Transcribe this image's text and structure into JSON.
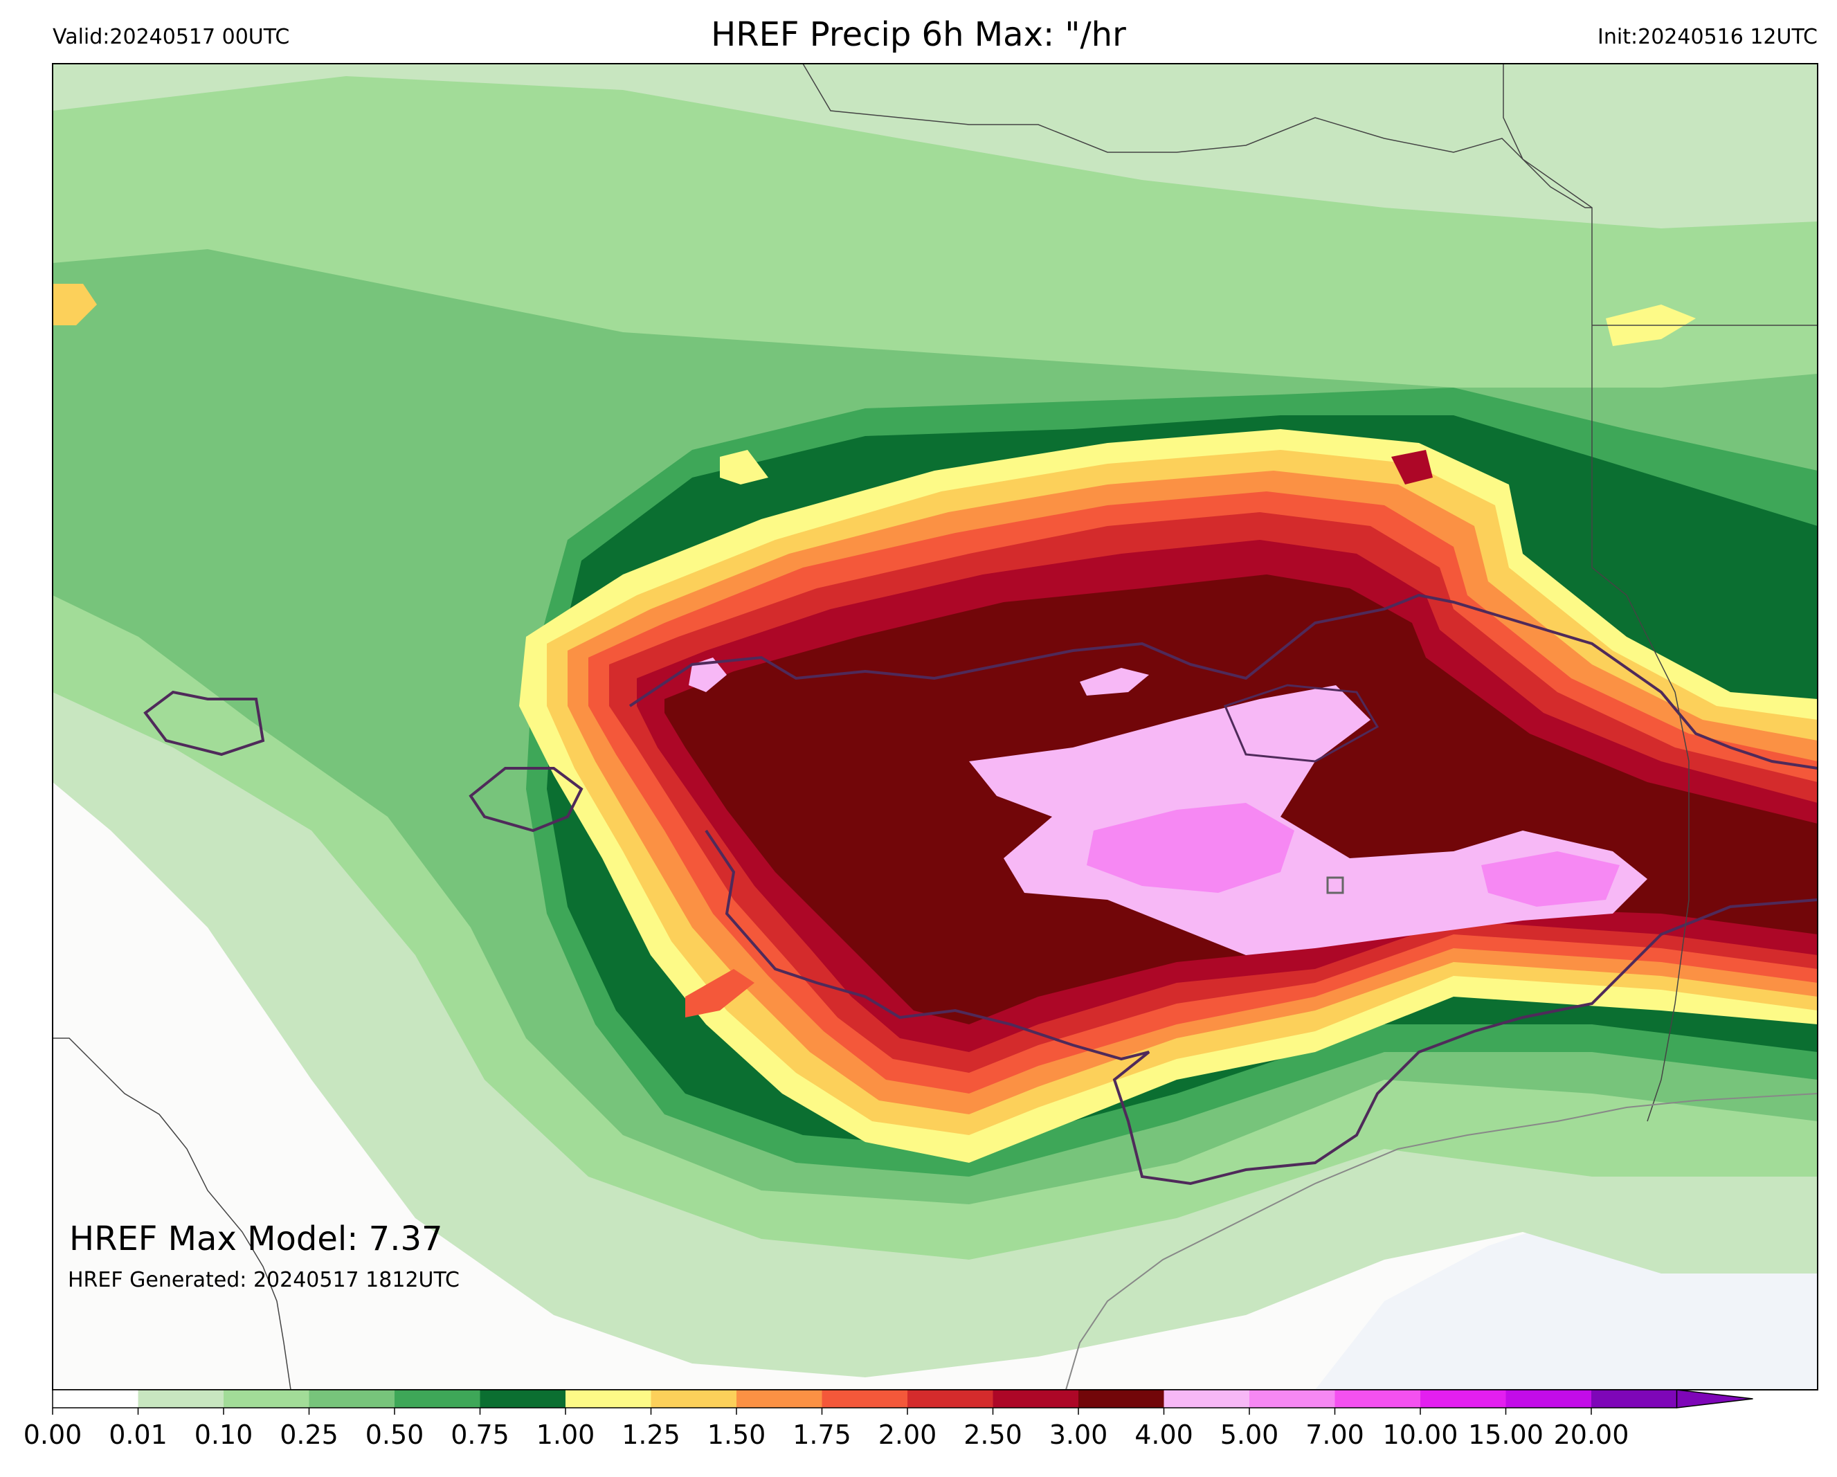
{
  "header": {
    "valid": "Valid:20240517 00UTC",
    "title": "HREF Precip 6h Max: \"/hr",
    "init": "Init:20240516 12UTC"
  },
  "annotations": {
    "max_model": "HREF Max Model: 7.37",
    "generated": "HREF Generated: 20240517 1812UTC"
  },
  "colorbar": {
    "ticks": [
      "0.00",
      "0.01",
      "0.10",
      "0.25",
      "0.50",
      "0.75",
      "1.00",
      "1.25",
      "1.50",
      "1.75",
      "2.00",
      "2.50",
      "3.00",
      "4.00",
      "5.00",
      "7.00",
      "10.00",
      "15.00",
      "20.00"
    ],
    "colors": [
      "#ffffff",
      "#c8e6c0",
      "#a2dc98",
      "#77c47b",
      "#3ea758",
      "#0b6f31",
      "#fdfa87",
      "#fcd05a",
      "#fb9144",
      "#f4583a",
      "#d42b2c",
      "#ad0727",
      "#720609",
      "#f7b8f6",
      "#f688f3",
      "#f451f0",
      "#e31ff0",
      "#c30ce8",
      "#7e06b8"
    ],
    "extend": "max"
  },
  "legend_colors": {
    "land": "#fbfbfa",
    "water": "#f1f4f9",
    "contour_outline": "#4f2a5a",
    "border": "#555555"
  }
}
